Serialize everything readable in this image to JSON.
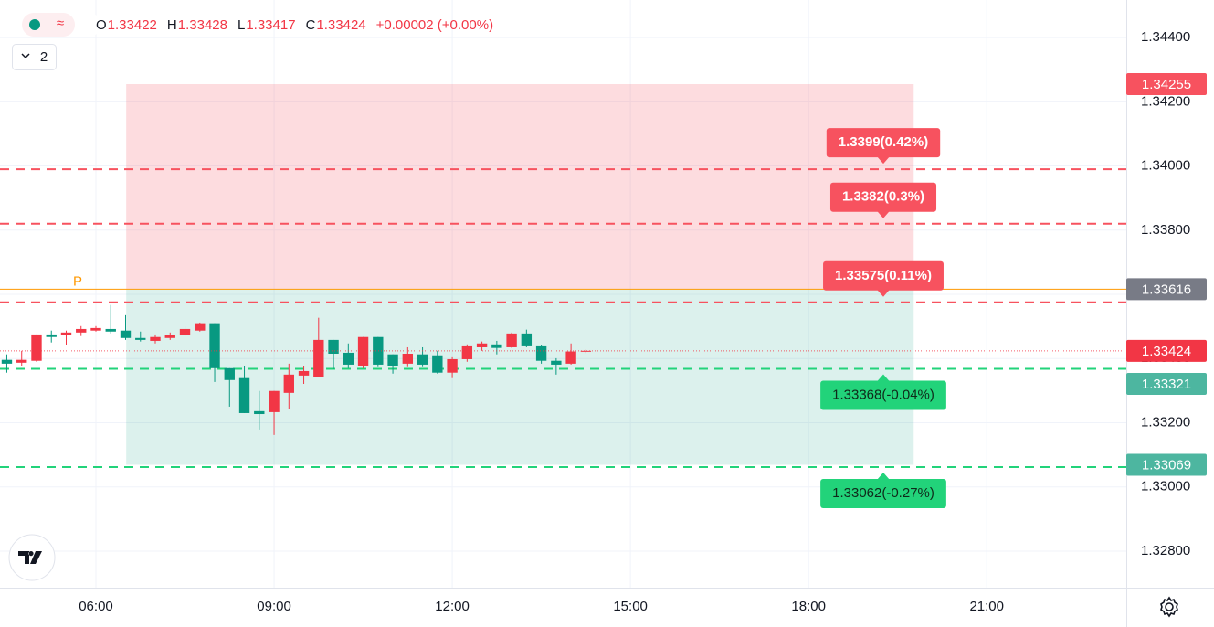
{
  "chart_data": {
    "type": "candlestick",
    "x": [
      4.5,
      4.75,
      5,
      5.25,
      5.5,
      5.75,
      6,
      6.25,
      6.5,
      6.75,
      7,
      7.25,
      7.5,
      7.75,
      8,
      8.25,
      8.5,
      8.75,
      9,
      9.25,
      9.5,
      9.75,
      10,
      10.25,
      10.5,
      10.75,
      11,
      11.25,
      11.5,
      11.75,
      12,
      12.25,
      12.5,
      12.75,
      13,
      13.25,
      13.5,
      13.75,
      14,
      14.25
    ],
    "open": [
      1.33396,
      1.33387,
      1.33393,
      1.33475,
      1.33472,
      1.33481,
      1.33487,
      1.33492,
      1.33487,
      1.33464,
      1.33455,
      1.33464,
      1.33472,
      1.33487,
      1.3351,
      1.3337,
      1.33339,
      1.33236,
      1.33233,
      1.33293,
      1.33347,
      1.33341,
      1.33458,
      1.33418,
      1.33378,
      1.33467,
      1.33413,
      1.33384,
      1.33413,
      1.3341,
      1.33356,
      1.33398,
      1.33435,
      1.33444,
      1.33435,
      1.33478,
      1.33438,
      1.33393,
      1.33384,
      1.33422
    ],
    "high": [
      1.33413,
      1.33424,
      1.33475,
      1.33487,
      1.33487,
      1.33501,
      1.33501,
      1.33567,
      1.33535,
      1.33484,
      1.33475,
      1.33481,
      1.33501,
      1.33512,
      1.3351,
      1.3337,
      1.33378,
      1.33299,
      1.33299,
      1.33384,
      1.33378,
      1.33527,
      1.33458,
      1.33447,
      1.33467,
      1.33467,
      1.33413,
      1.33435,
      1.33435,
      1.33424,
      1.33404,
      1.33444,
      1.33453,
      1.33455,
      1.33481,
      1.3349,
      1.33441,
      1.33401,
      1.33447,
      1.33428
    ],
    "low": [
      1.33356,
      1.33378,
      1.3339,
      1.3345,
      1.33441,
      1.3347,
      1.33484,
      1.33478,
      1.33458,
      1.33453,
      1.33447,
      1.33458,
      1.3347,
      1.33484,
      1.33327,
      1.3325,
      1.3323,
      1.33179,
      1.33162,
      1.33244,
      1.33321,
      1.33341,
      1.33367,
      1.3337,
      1.3337,
      1.33376,
      1.33353,
      1.33376,
      1.33376,
      1.33353,
      1.33339,
      1.3339,
      1.33424,
      1.33413,
      1.33433,
      1.33435,
      1.33384,
      1.3335,
      1.33381,
      1.33417
    ],
    "close": [
      1.33384,
      1.33396,
      1.33475,
      1.33467,
      1.33481,
      1.33492,
      1.33495,
      1.33484,
      1.33464,
      1.33458,
      1.33467,
      1.33472,
      1.33492,
      1.3351,
      1.3337,
      1.33333,
      1.3323,
      1.33227,
      1.33299,
      1.3335,
      1.33361,
      1.33458,
      1.33415,
      1.33381,
      1.33467,
      1.33381,
      1.33378,
      1.33415,
      1.33381,
      1.33356,
      1.33398,
      1.33438,
      1.33447,
      1.33433,
      1.33478,
      1.33438,
      1.33393,
      1.33381,
      1.33422,
      1.33424
    ],
    "up_color": "#f23645",
    "down_color": "#089981",
    "xlim": [
      4.385,
      23.35
    ],
    "ylim": [
      1.32686,
      1.34517
    ],
    "xticks": [
      {
        "value": 6,
        "label": "06:00"
      },
      {
        "value": 9,
        "label": "09:00"
      },
      {
        "value": 12,
        "label": "12:00"
      },
      {
        "value": 15,
        "label": "15:00"
      },
      {
        "value": 18,
        "label": "18:00"
      },
      {
        "value": 21,
        "label": "21:00"
      }
    ],
    "yticks": [
      {
        "value": 1.344,
        "label": "1.34400"
      },
      {
        "value": 1.342,
        "label": "1.34200"
      },
      {
        "value": 1.34,
        "label": "1.34000"
      },
      {
        "value": 1.338,
        "label": "1.33800"
      },
      {
        "value": 1.336,
        "label": "1.33600"
      },
      {
        "value": 1.334,
        "label": "1.33400"
      },
      {
        "value": 1.332,
        "label": "1.33200"
      },
      {
        "value": 1.33,
        "label": "1.33000"
      },
      {
        "value": 1.328,
        "label": "1.32800"
      }
    ],
    "grid": true,
    "header": {
      "ohlc": [
        {
          "letter": "O",
          "value": 1.33422
        },
        {
          "letter": "H",
          "value": 1.33428
        },
        {
          "letter": "L",
          "value": 1.33417
        },
        {
          "letter": "C",
          "value": 1.33424
        }
      ],
      "change": "+0.00002 (+0.00%)"
    },
    "indicators_count": 2,
    "position": {
      "start": 6.51,
      "end": 19.77,
      "target": 1.34255,
      "entry": 1.33616,
      "stop": 1.33069
    },
    "pivot": {
      "value": 1.33616,
      "label": "P",
      "color": "#ff9800"
    },
    "levels": [
      {
        "value": 1.3399,
        "label": "1.3399(0.42%)",
        "color": "#f7525f",
        "text_color": "#ffffff",
        "side": "above"
      },
      {
        "value": 1.3382,
        "label": "1.3382(0.3%)",
        "color": "#f7525f",
        "text_color": "#ffffff",
        "side": "above"
      },
      {
        "value": 1.33575,
        "label": "1.33575(0.11%)",
        "color": "#f7525f",
        "text_color": "#ffffff",
        "side": "above"
      },
      {
        "value": 1.33368,
        "label": "1.33368(-0.04%)",
        "color": "#22d37a",
        "text_color": "#0f2a1a",
        "side": "below"
      },
      {
        "value": 1.33062,
        "label": "1.33062(-0.27%)",
        "color": "#22d37a",
        "text_color": "#0f2a1a",
        "side": "below"
      }
    ],
    "price_tags": [
      {
        "value": 1.34255,
        "color": "#f7525f"
      },
      {
        "value": 1.33616,
        "color": "#787b86"
      },
      {
        "value": 1.33424,
        "color": "#f23645"
      },
      {
        "value": 1.33321,
        "color": "#4db6a0"
      },
      {
        "value": 1.33069,
        "color": "#4db6a0"
      }
    ]
  }
}
